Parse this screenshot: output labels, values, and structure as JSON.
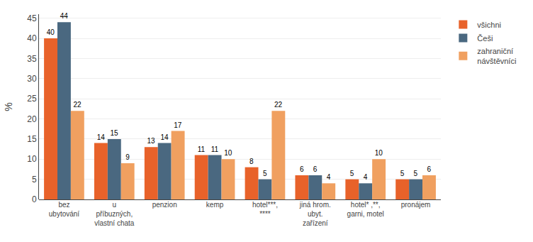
{
  "chart_data": {
    "type": "bar",
    "categories": [
      "bez\nubytování",
      "u\npříbuzných,\nvlastní chata",
      "penzion",
      "kemp",
      "hotel***,\n****",
      "jiná hrom.\nubyt.\nzařízení",
      "hotel* ,**,\ngarni, motel",
      "pronájem"
    ],
    "series": [
      {
        "name": "všichni",
        "color": "#e8622a",
        "values": [
          40,
          14,
          13,
          11,
          8,
          6,
          5,
          5
        ]
      },
      {
        "name": "Češi",
        "color": "#4a6880",
        "values": [
          44,
          15,
          14,
          11,
          5,
          6,
          4,
          5
        ]
      },
      {
        "name": "zahraniční\nnávštěvníci",
        "color": "#f0a060",
        "values": [
          22,
          9,
          17,
          10,
          22,
          4,
          10,
          6
        ]
      }
    ],
    "ylabel": "%",
    "ylim": [
      0,
      46
    ],
    "yticks": [
      0,
      5,
      10,
      15,
      20,
      25,
      30,
      35,
      40,
      45
    ],
    "grid": true,
    "legend": "right",
    "data_labels": true
  }
}
